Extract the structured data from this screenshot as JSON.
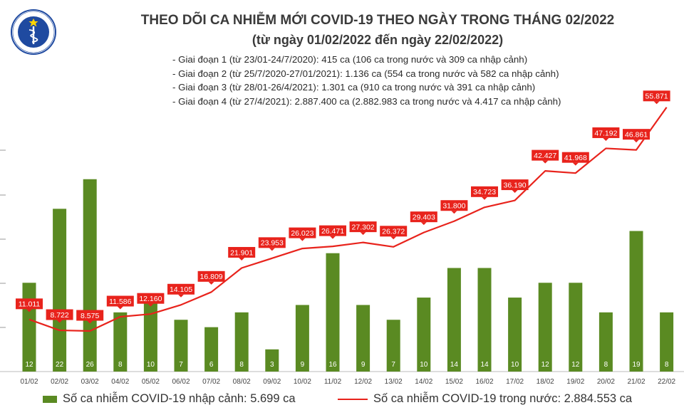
{
  "header": {
    "logo_text": "BỘ Y TẾ · MINISTRY OF HEALTH",
    "title": "THEO DÕI CA NHIỄM MỚI COVID-19 THEO NGÀY TRONG THÁNG 02/2022",
    "subtitle": "(từ ngày 01/02/2022 đến ngày 22/02/2022)",
    "stages": [
      "- Giai đoạn 1 (từ 23/01-24/7/2020): 415 ca (106 ca trong nước và 309 ca nhập cảnh)",
      "- Giai đoạn 2 (từ 25/7/2020-27/01/2021): 1.136 ca (554 ca trong nước và 582 ca nhập cảnh)",
      "- Giai đoạn 3 (từ 28/01-26/4/2021): 1.301 ca (910 ca trong nước và 391 ca nhập cảnh)",
      "- Giai đoạn 4 (từ 27/4/2021): 2.887.400 ca (2.882.983 ca trong nước và 4.417 ca nhập cảnh)"
    ]
  },
  "legend": {
    "bar_label": "Số ca nhiễm COVID-19 nhập cảnh: 5.699 ca",
    "line_label": "Số ca nhiễm COVID-19 trong nước: 2.884.553 ca"
  },
  "colors": {
    "bar": "#5a8a22",
    "line": "#e8231c",
    "label_bg": "#e8231c",
    "axis": "#bbbbbb"
  },
  "chart_data": {
    "type": "bar",
    "categories": [
      "01/02",
      "02/02",
      "03/02",
      "04/02",
      "05/02",
      "06/02",
      "07/02",
      "08/02",
      "09/02",
      "10/02",
      "11/02",
      "12/02",
      "13/02",
      "14/02",
      "15/02",
      "16/02",
      "17/02",
      "18/02",
      "19/02",
      "20/02",
      "21/02",
      "22/02"
    ],
    "series": [
      {
        "name": "Số ca nhiễm COVID-19 nhập cảnh: 5.699 ca",
        "type": "bar",
        "values": [
          12,
          22,
          26,
          8,
          10,
          7,
          6,
          8,
          3,
          9,
          16,
          9,
          7,
          10,
          14,
          14,
          10,
          12,
          12,
          8,
          19,
          8
        ],
        "labels": [
          "12",
          "22",
          "26",
          "8",
          "10",
          "7",
          "6",
          "8",
          "3",
          "9",
          "16",
          "9",
          "7",
          "10",
          "14",
          "14",
          "10",
          "12",
          "12",
          "8",
          "19",
          "8"
        ]
      },
      {
        "name": "Số ca nhiễm COVID-19 trong nước: 2.884.553 ca",
        "type": "line",
        "values": [
          11011,
          8722,
          8575,
          11586,
          12160,
          14105,
          16809,
          21901,
          23953,
          26023,
          26471,
          27302,
          26372,
          29403,
          31800,
          34723,
          36190,
          42427,
          41968,
          47192,
          46861,
          55871
        ],
        "labels": [
          "11.011",
          "8.722",
          "8.575",
          "11.586",
          "12.160",
          "14.105",
          "16.809",
          "21.901",
          "23.953",
          "26.023",
          "26.471",
          "27.302",
          "26.372",
          "29.403",
          "31.800",
          "34.723",
          "36.190",
          "42.427",
          "41.968",
          "47.192",
          "46.861",
          "55.871"
        ]
      }
    ],
    "bar_axis_range": [
      0,
      33
    ],
    "line_axis_range": [
      0,
      59000
    ],
    "grid": false,
    "legend_position": "bottom"
  }
}
